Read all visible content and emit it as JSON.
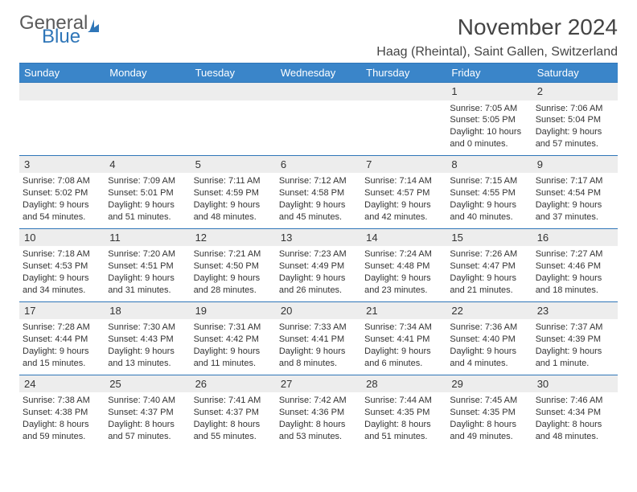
{
  "logo": {
    "general": "General",
    "blue": "Blue"
  },
  "header": {
    "title": "November 2024",
    "location": "Haag (Rheintal), Saint Gallen, Switzerland"
  },
  "colors": {
    "accent": "#3a85c9",
    "line": "#2f76b8",
    "shade": "#ededed"
  },
  "daynames": [
    "Sunday",
    "Monday",
    "Tuesday",
    "Wednesday",
    "Thursday",
    "Friday",
    "Saturday"
  ],
  "weeks": [
    [
      null,
      null,
      null,
      null,
      null,
      {
        "n": "1",
        "sr": "Sunrise: 7:05 AM",
        "ss": "Sunset: 5:05 PM",
        "dl": "Daylight: 10 hours and 0 minutes."
      },
      {
        "n": "2",
        "sr": "Sunrise: 7:06 AM",
        "ss": "Sunset: 5:04 PM",
        "dl": "Daylight: 9 hours and 57 minutes."
      }
    ],
    [
      {
        "n": "3",
        "sr": "Sunrise: 7:08 AM",
        "ss": "Sunset: 5:02 PM",
        "dl": "Daylight: 9 hours and 54 minutes."
      },
      {
        "n": "4",
        "sr": "Sunrise: 7:09 AM",
        "ss": "Sunset: 5:01 PM",
        "dl": "Daylight: 9 hours and 51 minutes."
      },
      {
        "n": "5",
        "sr": "Sunrise: 7:11 AM",
        "ss": "Sunset: 4:59 PM",
        "dl": "Daylight: 9 hours and 48 minutes."
      },
      {
        "n": "6",
        "sr": "Sunrise: 7:12 AM",
        "ss": "Sunset: 4:58 PM",
        "dl": "Daylight: 9 hours and 45 minutes."
      },
      {
        "n": "7",
        "sr": "Sunrise: 7:14 AM",
        "ss": "Sunset: 4:57 PM",
        "dl": "Daylight: 9 hours and 42 minutes."
      },
      {
        "n": "8",
        "sr": "Sunrise: 7:15 AM",
        "ss": "Sunset: 4:55 PM",
        "dl": "Daylight: 9 hours and 40 minutes."
      },
      {
        "n": "9",
        "sr": "Sunrise: 7:17 AM",
        "ss": "Sunset: 4:54 PM",
        "dl": "Daylight: 9 hours and 37 minutes."
      }
    ],
    [
      {
        "n": "10",
        "sr": "Sunrise: 7:18 AM",
        "ss": "Sunset: 4:53 PM",
        "dl": "Daylight: 9 hours and 34 minutes."
      },
      {
        "n": "11",
        "sr": "Sunrise: 7:20 AM",
        "ss": "Sunset: 4:51 PM",
        "dl": "Daylight: 9 hours and 31 minutes."
      },
      {
        "n": "12",
        "sr": "Sunrise: 7:21 AM",
        "ss": "Sunset: 4:50 PM",
        "dl": "Daylight: 9 hours and 28 minutes."
      },
      {
        "n": "13",
        "sr": "Sunrise: 7:23 AM",
        "ss": "Sunset: 4:49 PM",
        "dl": "Daylight: 9 hours and 26 minutes."
      },
      {
        "n": "14",
        "sr": "Sunrise: 7:24 AM",
        "ss": "Sunset: 4:48 PM",
        "dl": "Daylight: 9 hours and 23 minutes."
      },
      {
        "n": "15",
        "sr": "Sunrise: 7:26 AM",
        "ss": "Sunset: 4:47 PM",
        "dl": "Daylight: 9 hours and 21 minutes."
      },
      {
        "n": "16",
        "sr": "Sunrise: 7:27 AM",
        "ss": "Sunset: 4:46 PM",
        "dl": "Daylight: 9 hours and 18 minutes."
      }
    ],
    [
      {
        "n": "17",
        "sr": "Sunrise: 7:28 AM",
        "ss": "Sunset: 4:44 PM",
        "dl": "Daylight: 9 hours and 15 minutes."
      },
      {
        "n": "18",
        "sr": "Sunrise: 7:30 AM",
        "ss": "Sunset: 4:43 PM",
        "dl": "Daylight: 9 hours and 13 minutes."
      },
      {
        "n": "19",
        "sr": "Sunrise: 7:31 AM",
        "ss": "Sunset: 4:42 PM",
        "dl": "Daylight: 9 hours and 11 minutes."
      },
      {
        "n": "20",
        "sr": "Sunrise: 7:33 AM",
        "ss": "Sunset: 4:41 PM",
        "dl": "Daylight: 9 hours and 8 minutes."
      },
      {
        "n": "21",
        "sr": "Sunrise: 7:34 AM",
        "ss": "Sunset: 4:41 PM",
        "dl": "Daylight: 9 hours and 6 minutes."
      },
      {
        "n": "22",
        "sr": "Sunrise: 7:36 AM",
        "ss": "Sunset: 4:40 PM",
        "dl": "Daylight: 9 hours and 4 minutes."
      },
      {
        "n": "23",
        "sr": "Sunrise: 7:37 AM",
        "ss": "Sunset: 4:39 PM",
        "dl": "Daylight: 9 hours and 1 minute."
      }
    ],
    [
      {
        "n": "24",
        "sr": "Sunrise: 7:38 AM",
        "ss": "Sunset: 4:38 PM",
        "dl": "Daylight: 8 hours and 59 minutes."
      },
      {
        "n": "25",
        "sr": "Sunrise: 7:40 AM",
        "ss": "Sunset: 4:37 PM",
        "dl": "Daylight: 8 hours and 57 minutes."
      },
      {
        "n": "26",
        "sr": "Sunrise: 7:41 AM",
        "ss": "Sunset: 4:37 PM",
        "dl": "Daylight: 8 hours and 55 minutes."
      },
      {
        "n": "27",
        "sr": "Sunrise: 7:42 AM",
        "ss": "Sunset: 4:36 PM",
        "dl": "Daylight: 8 hours and 53 minutes."
      },
      {
        "n": "28",
        "sr": "Sunrise: 7:44 AM",
        "ss": "Sunset: 4:35 PM",
        "dl": "Daylight: 8 hours and 51 minutes."
      },
      {
        "n": "29",
        "sr": "Sunrise: 7:45 AM",
        "ss": "Sunset: 4:35 PM",
        "dl": "Daylight: 8 hours and 49 minutes."
      },
      {
        "n": "30",
        "sr": "Sunrise: 7:46 AM",
        "ss": "Sunset: 4:34 PM",
        "dl": "Daylight: 8 hours and 48 minutes."
      }
    ]
  ]
}
